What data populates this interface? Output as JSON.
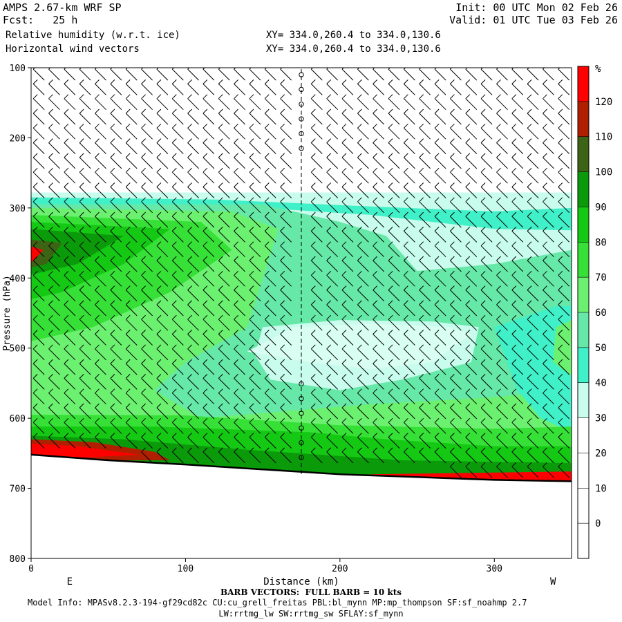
{
  "header": {
    "model": "AMPS 2.67-km WRF SP",
    "fcst": "Fcst:   25 h",
    "field1": "Relative humidity (w.r.t. ice)",
    "field2": "Horizontal wind vectors",
    "init": "Init: 00 UTC Mon 02 Feb 26",
    "valid": "Valid: 01 UTC Tue 03 Feb 26",
    "xy1": "XY= 334.0,260.4 to 334.0,130.6",
    "xy2": "XY= 334.0,260.4 to 334.0,130.6"
  },
  "footer": {
    "barb_note": "BARB VECTORS:  FULL BARB = 10 kts",
    "model_info": "Model Info: MPASv8.2.3-194-gf29cd82c CU:cu_grell_freitas PBL:bl_mynn MP:mp_thompson SF:sf_noahmp 2.7",
    "model_info2": "LW:rrtmg_lw SW:rrtmg_sw SFLAY:sf_mynn"
  },
  "chart_data": {
    "type": "heatmap",
    "title": "Relative humidity (w.r.t. ice)",
    "xlabel": "Distance (km)",
    "ylabel": "Pressure (hPa)",
    "xlim": [
      0,
      350
    ],
    "ylim": [
      800,
      100
    ],
    "x_ticks": [
      0,
      100,
      200,
      300
    ],
    "y_ticks": [
      100,
      200,
      300,
      400,
      500,
      600,
      700,
      800
    ],
    "left_label": "E",
    "right_label": "W",
    "colorbar": {
      "unit": "%",
      "levels": [
        0,
        10,
        20,
        30,
        40,
        50,
        60,
        70,
        80,
        90,
        100,
        110,
        120
      ],
      "colors": [
        "#ffffff",
        "#ffffff",
        "#ffffff",
        "#ffffff",
        "#c8fcec",
        "#40f0c8",
        "#66e8a8",
        "#6cf070",
        "#36e036",
        "#14c814",
        "#0a9a0a",
        "#3c6414",
        "#b02000",
        "#ff0000"
      ]
    },
    "terrain_pressure": [
      [
        0,
        652
      ],
      [
        50,
        660
      ],
      [
        100,
        666
      ],
      [
        150,
        673
      ],
      [
        200,
        680
      ],
      [
        250,
        684
      ],
      [
        300,
        688
      ],
      [
        350,
        690
      ]
    ],
    "wind_vector_note": "Horizontal wind barbs plotted across the section"
  }
}
